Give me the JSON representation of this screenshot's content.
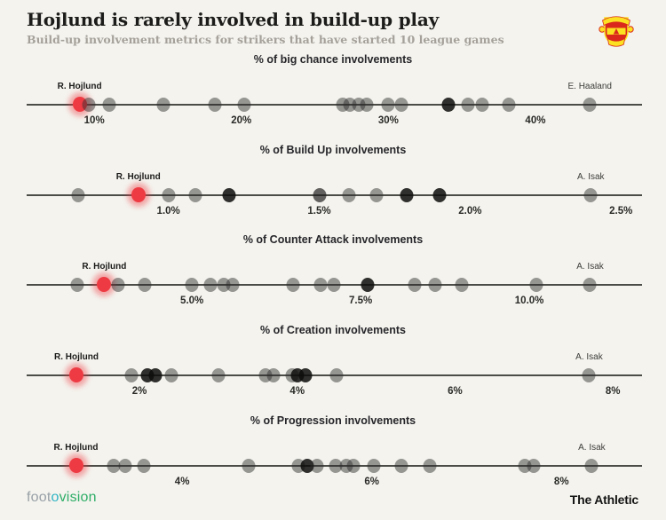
{
  "header": {
    "title": "Hojlund is rarely involved in build-up play",
    "subtitle": "Build-up involvement metrics for strikers that have started 10 league games",
    "club_badge": "manchester-united-crest"
  },
  "footer": {
    "left_brand": {
      "foot": "foot",
      "o": "o",
      "vision": "vision"
    },
    "right_brand": "The Athletic"
  },
  "colors": {
    "background": "#f4f3ee",
    "axis": "#4b4b47",
    "dot_gray": "rgba(47,47,45,0.48)",
    "highlight_red": "#ee3b43",
    "crest_red": "#da291c",
    "crest_yellow": "#fbe122",
    "brand_teal": "#2fb4c4",
    "brand_green": "#2fae68"
  },
  "chart_data": [
    {
      "id": "big-chance",
      "type": "strip",
      "title": "% of big chance involvements",
      "xlabel": "",
      "axis_range": [
        5.4,
        47.25
      ],
      "grid": false,
      "ticks": [
        {
          "label": "10%",
          "value": 10
        },
        {
          "label": "20%",
          "value": 20
        },
        {
          "label": "30%",
          "value": 30
        },
        {
          "label": "40%",
          "value": 40
        }
      ],
      "points": [
        {
          "value": 9.0,
          "highlight": true,
          "label": "R. Hojlund"
        },
        {
          "value": 9.6
        },
        {
          "value": 11.0
        },
        {
          "value": 14.7
        },
        {
          "value": 18.2
        },
        {
          "value": 20.2
        },
        {
          "value": 26.9
        },
        {
          "value": 27.4
        },
        {
          "value": 28.0
        },
        {
          "value": 28.5
        },
        {
          "value": 30.0
        },
        {
          "value": 30.9
        },
        {
          "value": 34.1,
          "shade": "dark"
        },
        {
          "value": 35.4
        },
        {
          "value": 36.4
        },
        {
          "value": 38.2
        },
        {
          "value": 43.7,
          "label": "E. Haaland"
        }
      ]
    },
    {
      "id": "build-up",
      "type": "strip",
      "title": "% of Build Up involvements",
      "xlabel": "",
      "axis_range": [
        0.53,
        2.57
      ],
      "grid": false,
      "ticks": [
        {
          "label": "1.0%",
          "value": 1.0
        },
        {
          "label": "1.5%",
          "value": 1.5
        },
        {
          "label": "2.0%",
          "value": 2.0
        },
        {
          "label": "2.5%",
          "value": 2.5
        }
      ],
      "points": [
        {
          "value": 0.7
        },
        {
          "value": 0.9,
          "highlight": true,
          "label": "R. Hojlund"
        },
        {
          "value": 1.0
        },
        {
          "value": 1.09
        },
        {
          "value": 1.2,
          "shade": "dark"
        },
        {
          "value": 1.5,
          "shade": "mid"
        },
        {
          "value": 1.6
        },
        {
          "value": 1.69
        },
        {
          "value": 1.79,
          "shade": "dark"
        },
        {
          "value": 1.9,
          "shade": "dark"
        },
        {
          "value": 2.4,
          "label": "A. Isak"
        }
      ]
    },
    {
      "id": "counter-attack",
      "type": "strip",
      "title": "% of Counter Attack involvements",
      "xlabel": "",
      "axis_range": [
        2.55,
        11.67
      ],
      "grid": false,
      "ticks": [
        {
          "label": "5.0%",
          "value": 5.0
        },
        {
          "label": "7.5%",
          "value": 7.5
        },
        {
          "label": "10.0%",
          "value": 10.0
        }
      ],
      "points": [
        {
          "value": 3.3
        },
        {
          "value": 3.7,
          "highlight": true,
          "label": "R. Hojlund"
        },
        {
          "value": 3.9
        },
        {
          "value": 4.3
        },
        {
          "value": 5.0
        },
        {
          "value": 5.28
        },
        {
          "value": 5.47
        },
        {
          "value": 5.6
        },
        {
          "value": 6.5
        },
        {
          "value": 6.9
        },
        {
          "value": 7.1
        },
        {
          "value": 7.6,
          "shade": "dark"
        },
        {
          "value": 8.3
        },
        {
          "value": 8.6
        },
        {
          "value": 9.0
        },
        {
          "value": 10.1
        },
        {
          "value": 10.9,
          "label": "A. Isak"
        }
      ]
    },
    {
      "id": "creation",
      "type": "strip",
      "title": "% of Creation involvements",
      "xlabel": "",
      "axis_range": [
        0.57,
        8.37
      ],
      "grid": false,
      "ticks": [
        {
          "label": "2%",
          "value": 2
        },
        {
          "label": "4%",
          "value": 4
        },
        {
          "label": "6%",
          "value": 6
        },
        {
          "label": "8%",
          "value": 8
        }
      ],
      "points": [
        {
          "value": 1.2,
          "highlight": true,
          "label": "R. Hojlund"
        },
        {
          "value": 1.9
        },
        {
          "value": 2.1,
          "shade": "dark"
        },
        {
          "value": 2.2,
          "shade": "dark"
        },
        {
          "value": 2.4
        },
        {
          "value": 3.0
        },
        {
          "value": 3.6
        },
        {
          "value": 3.7
        },
        {
          "value": 3.93
        },
        {
          "value": 4.0,
          "shade": "dark"
        },
        {
          "value": 4.1,
          "shade": "dark"
        },
        {
          "value": 4.5
        },
        {
          "value": 7.7,
          "label": "A. Isak"
        }
      ]
    },
    {
      "id": "progression",
      "type": "strip",
      "title": "% of Progression involvements",
      "xlabel": "",
      "axis_range": [
        2.36,
        8.85
      ],
      "grid": false,
      "ticks": [
        {
          "label": "4%",
          "value": 4
        },
        {
          "label": "6%",
          "value": 6
        },
        {
          "label": "8%",
          "value": 8
        }
      ],
      "points": [
        {
          "value": 2.88,
          "highlight": true,
          "label": "R. Hojlund"
        },
        {
          "value": 3.28
        },
        {
          "value": 3.4
        },
        {
          "value": 3.6
        },
        {
          "value": 4.7
        },
        {
          "value": 5.23
        },
        {
          "value": 5.32,
          "shade": "dark"
        },
        {
          "value": 5.42
        },
        {
          "value": 5.62
        },
        {
          "value": 5.73
        },
        {
          "value": 5.81
        },
        {
          "value": 6.02
        },
        {
          "value": 6.31
        },
        {
          "value": 6.61
        },
        {
          "value": 7.61
        },
        {
          "value": 7.71
        },
        {
          "value": 8.32,
          "label": "A. Isak"
        }
      ]
    }
  ]
}
